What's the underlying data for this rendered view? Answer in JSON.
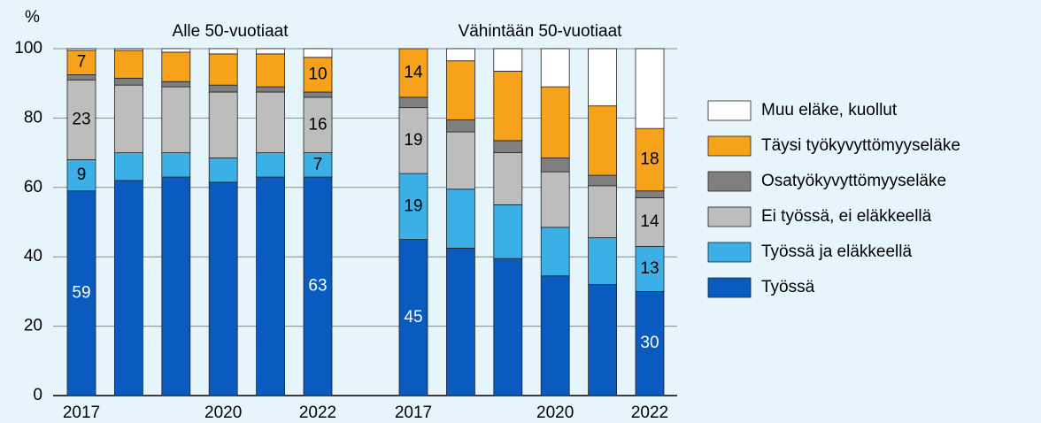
{
  "chart_data": {
    "type": "stacked_bar",
    "y_axis_label": "%",
    "group_labels": [
      "Alle 50-vuotiaat",
      "Vähintään 50-vuotiaat"
    ],
    "categories": [
      "2017",
      null,
      null,
      "2020",
      null,
      "2022",
      "2017",
      null,
      null,
      "2020",
      null,
      "2022"
    ],
    "series": [
      {
        "name": "Työssä",
        "color": "#0a5bbf",
        "values": [
          59,
          62,
          63,
          61.5,
          63,
          63,
          45,
          42.5,
          39.5,
          34.5,
          32,
          30
        ]
      },
      {
        "name": "Työssä ja eläkkeellä",
        "color": "#3ab0e6",
        "values": [
          9,
          8,
          7,
          7,
          7,
          7,
          19,
          17,
          15.5,
          14,
          13.5,
          13
        ]
      },
      {
        "name": "Ei työssä, ei eläkkeellä",
        "color": "#bdbdbd",
        "values": [
          23,
          19.5,
          19,
          19,
          17.5,
          16,
          19,
          16.5,
          15,
          16,
          15,
          14
        ]
      },
      {
        "name": "Osatyökyvyttömyyseläke",
        "color": "#7f7f7f",
        "values": [
          1.5,
          2,
          1.5,
          2,
          1.5,
          1.5,
          3,
          3.5,
          3.5,
          4,
          3,
          2
        ]
      },
      {
        "name": "Täysi työkyvyttömyyseläke",
        "color": "#f7a21b",
        "values": [
          7,
          8,
          8.5,
          9,
          9.5,
          10,
          14,
          17,
          20,
          20.5,
          20,
          18
        ]
      },
      {
        "name": "Muu eläke, kuollut",
        "color": "#ffffff",
        "values": [
          0.5,
          0.5,
          1,
          1.5,
          1.5,
          2.5,
          0,
          3.5,
          6.5,
          11,
          16.5,
          23
        ]
      }
    ],
    "labeled_bars": [
      0,
      5,
      6,
      11
    ],
    "label_colors": [
      "#ffffff",
      "#000000",
      "#000000",
      "#000000",
      "#000000",
      "#000000"
    ],
    "labeled_series": [
      0,
      1,
      2,
      4
    ],
    "ylim": [
      0,
      100
    ],
    "yticks": [
      0,
      20,
      40,
      60,
      80,
      100
    ],
    "grid": true,
    "legend": "right"
  }
}
